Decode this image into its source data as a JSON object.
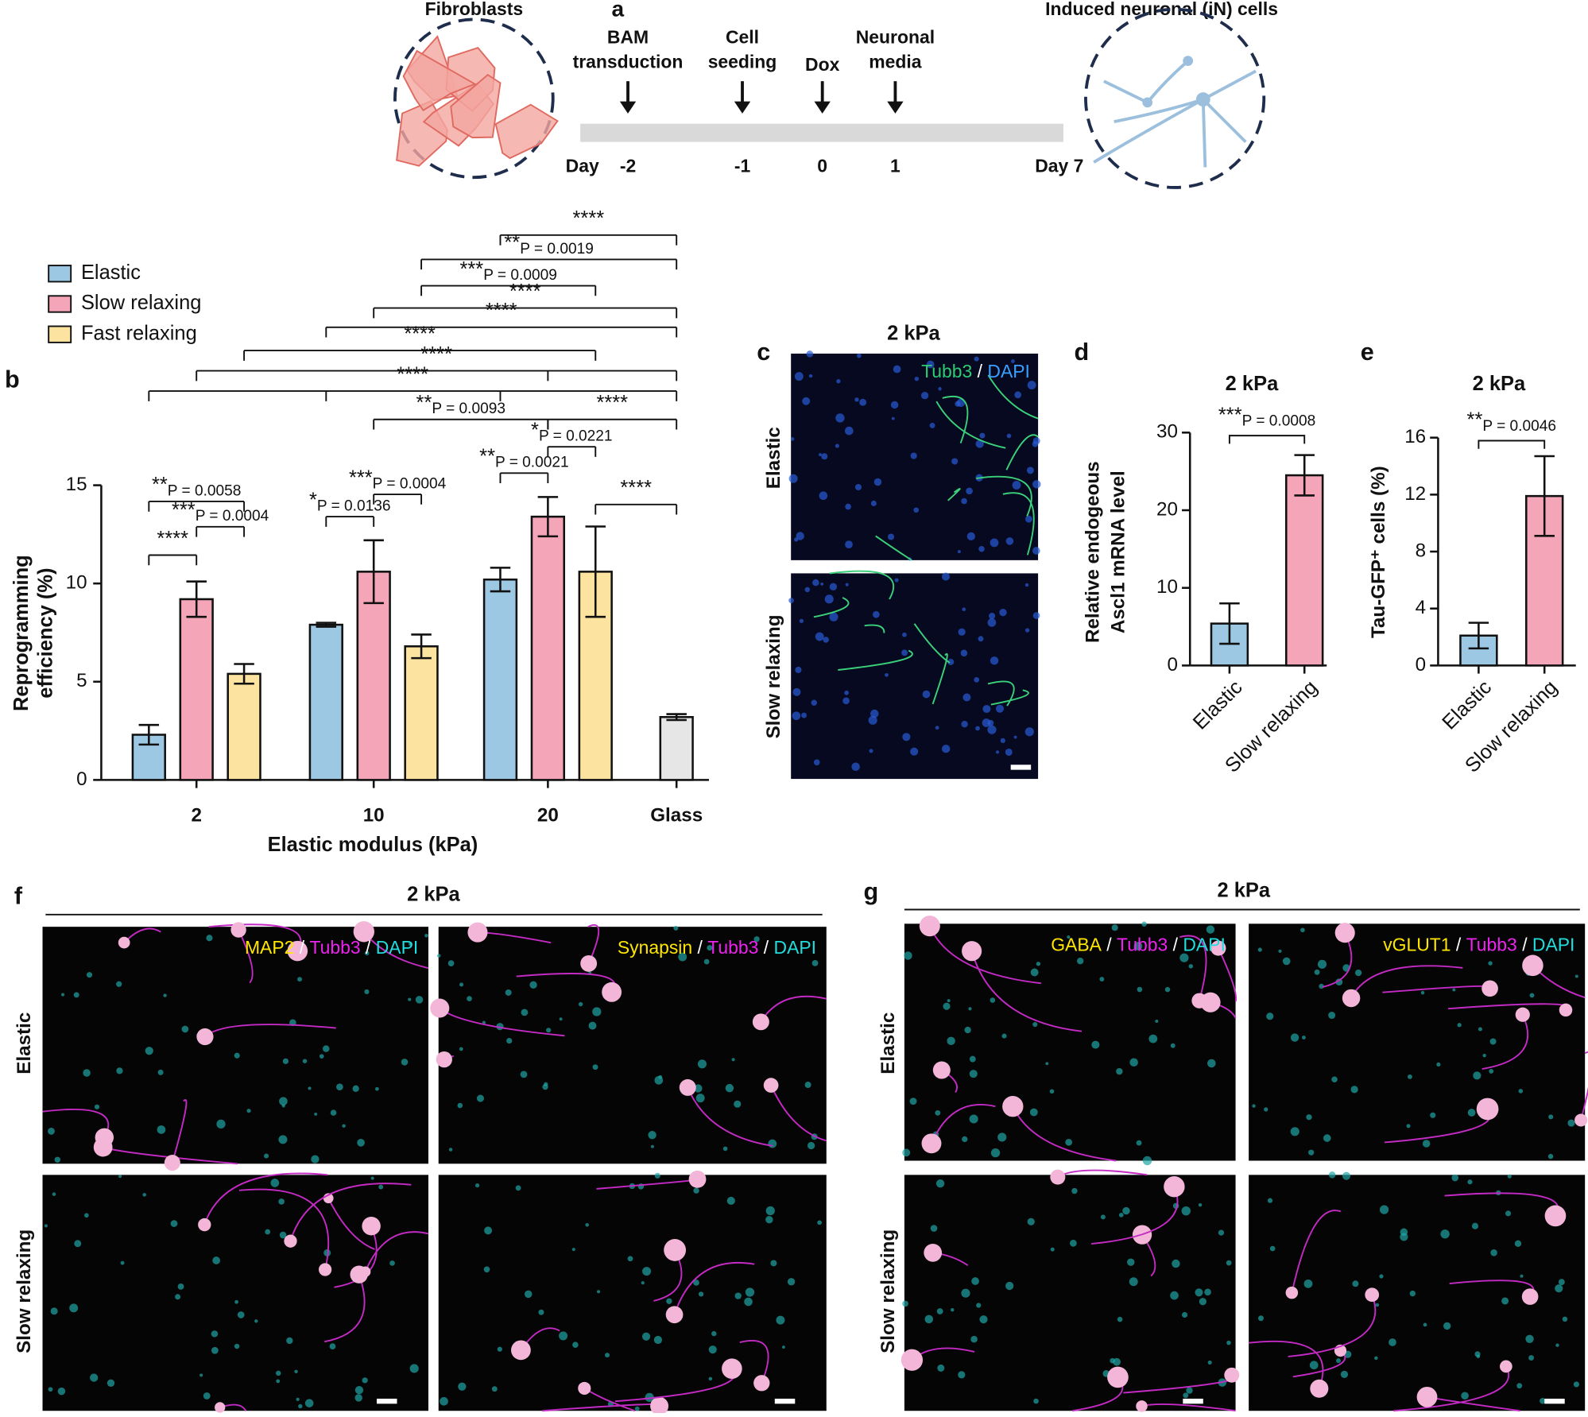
{
  "panel_a": {
    "label": "a",
    "start": "Fibroblasts",
    "end": "Induced neuronal (iN) cells",
    "day_start": "Day",
    "day_end": "Day 7",
    "steps": [
      {
        "label": [
          "BAM",
          "transduction"
        ],
        "day": "-2"
      },
      {
        "label": [
          "Cell",
          "seeding"
        ],
        "day": "-1"
      },
      {
        "label": [
          "Dox"
        ],
        "day": "0"
      },
      {
        "label": [
          "Neuronal",
          "media"
        ],
        "day": "1"
      }
    ]
  },
  "chart_data": [
    {
      "panel": "b",
      "type": "bar",
      "categories": [
        "2",
        "10",
        "20",
        "Glass"
      ],
      "xlabel": "Elastic modulus (kPa)",
      "ylabel": [
        "Reprogramming",
        "efficiency (%)"
      ],
      "ylim": [
        0,
        15
      ],
      "yticks": [
        0,
        5,
        10,
        15
      ],
      "series": [
        {
          "name": "Elastic",
          "color": "#9dc8e4",
          "values": [
            2.3,
            7.9,
            10.2,
            null
          ],
          "errors": [
            0.5,
            0.1,
            0.6,
            null
          ]
        },
        {
          "name": "Slow relaxing",
          "color": "#f4a6b8",
          "values": [
            9.2,
            10.6,
            13.4,
            null
          ],
          "errors": [
            0.9,
            1.6,
            1.0,
            null
          ]
        },
        {
          "name": "Fast relaxing",
          "color": "#fde3a0",
          "values": [
            5.4,
            6.8,
            10.6,
            null
          ],
          "errors": [
            0.5,
            0.6,
            2.3,
            null
          ]
        },
        {
          "color": "#e6e6e6",
          "values": [
            null,
            null,
            null,
            3.2
          ],
          "errors": [
            null,
            null,
            null,
            0.15
          ]
        }
      ],
      "comparisons": [
        {
          "between": [
            [
              2,
              0
            ],
            [
              3,
              3
            ]
          ],
          "stars": "****"
        },
        {
          "between": [
            [
              1,
              2
            ],
            [
              3,
              3
            ]
          ],
          "stars": "**",
          "p": "P = 0.0019"
        },
        {
          "between": [
            [
              1,
              2
            ],
            [
              2,
              2
            ]
          ],
          "stars": "***",
          "p": "P = 0.0009"
        },
        {
          "between": [
            [
              1,
              1
            ],
            [
              3,
              3
            ]
          ],
          "stars": "****"
        },
        {
          "between": [
            [
              1,
              0
            ],
            [
              3,
              3
            ]
          ],
          "stars": "****"
        },
        {
          "between": [
            [
              0,
              2
            ],
            [
              2,
              2
            ]
          ],
          "stars": "****"
        },
        {
          "between": [
            [
              0,
              1
            ],
            [
              2,
              1
            ],
            [
              3,
              3
            ]
          ],
          "stars": "****"
        },
        {
          "between": [
            [
              0,
              0
            ],
            [
              1,
              0
            ],
            [
              2,
              0
            ],
            [
              3,
              3
            ]
          ],
          "stars": "****"
        },
        {
          "between": [
            [
              1,
              1
            ],
            [
              2,
              1
            ]
          ],
          "stars": "**",
          "p": "P = 0.0093"
        },
        {
          "between": [
            [
              2,
              1
            ],
            [
              3,
              3
            ]
          ],
          "stars": "****"
        },
        {
          "between": [
            [
              2,
              1
            ],
            [
              2,
              2
            ]
          ],
          "stars": "*",
          "p": "P = 0.0221"
        },
        {
          "between": [
            [
              2,
              0
            ],
            [
              2,
              1
            ]
          ],
          "stars": "**",
          "p": "P = 0.0021"
        },
        {
          "between": [
            [
              2,
              2
            ],
            [
              3,
              3
            ]
          ],
          "stars": "****"
        },
        {
          "between": [
            [
              0,
              0
            ],
            [
              0,
              2
            ]
          ],
          "stars": "**",
          "p": "P = 0.0058"
        },
        {
          "between": [
            [
              0,
              1
            ],
            [
              0,
              2
            ]
          ],
          "stars": "***",
          "p": "P = 0.0004"
        },
        {
          "between": [
            [
              0,
              0
            ],
            [
              0,
              1
            ]
          ],
          "stars": "****"
        },
        {
          "between": [
            [
              1,
              1
            ],
            [
              1,
              2
            ]
          ],
          "stars": "***",
          "p": "P = 0.0004"
        },
        {
          "between": [
            [
              1,
              0
            ],
            [
              1,
              1
            ]
          ],
          "stars": "*",
          "p": "P = 0.0136"
        }
      ]
    },
    {
      "panel": "d",
      "type": "bar",
      "title": "2 kPa",
      "categories": [
        "Elastic",
        "Slow relaxing"
      ],
      "ylabel": [
        "Relative endogeous",
        "Ascl1 mRNA level"
      ],
      "ylim": [
        0,
        30
      ],
      "yticks": [
        0,
        10,
        20,
        30
      ],
      "colors": [
        "#9dc8e4",
        "#f4a6b8"
      ],
      "values": [
        5.4,
        24.5
      ],
      "errors": [
        2.6,
        2.6
      ],
      "comparisons": [
        {
          "between": [
            0,
            1
          ],
          "stars": "***",
          "p": "P = 0.0008"
        }
      ]
    },
    {
      "panel": "e",
      "type": "bar",
      "title": "2 kPa",
      "categories": [
        "Elastic",
        "Slow relaxing"
      ],
      "ylabel": [
        "Tau-GFP⁺ cells (%)"
      ],
      "ylim": [
        0,
        16
      ],
      "yticks": [
        0,
        4,
        8,
        12,
        16
      ],
      "colors": [
        "#9dc8e4",
        "#f4a6b8"
      ],
      "values": [
        2.1,
        11.9
      ],
      "errors": [
        0.9,
        2.8
      ],
      "comparisons": [
        {
          "between": [
            0,
            1
          ],
          "stars": "**",
          "p": "P = 0.0046"
        }
      ]
    }
  ],
  "panel_c": {
    "label": "c",
    "title": "2 kPa",
    "rows": [
      "Elastic",
      "Slow relaxing"
    ],
    "stains": [
      {
        "markers": [
          {
            "text": "Tubb3",
            "color": "#2ecc71"
          },
          {
            "text": "DAPI",
            "color": "#3aa0ff"
          }
        ],
        "separator": "/"
      }
    ]
  },
  "panel_f": {
    "label": "f",
    "title": "2 kPa",
    "rows": [
      "Elastic",
      "Slow relaxing"
    ],
    "stains": [
      {
        "markers": [
          {
            "text": "MAP2",
            "color": "#ffe600"
          },
          {
            "text": "Tubb3",
            "color": "#ee22ee"
          },
          {
            "text": "DAPI",
            "color": "#22dddd"
          }
        ],
        "separator": "/"
      },
      {
        "markers": [
          {
            "text": "Synapsin",
            "color": "#ffe600"
          },
          {
            "text": "Tubb3",
            "color": "#ee22ee"
          },
          {
            "text": "DAPI",
            "color": "#22dddd"
          }
        ],
        "separator": "/"
      }
    ]
  },
  "panel_g": {
    "label": "g",
    "title": "2 kPa",
    "rows": [
      "Elastic",
      "Slow relaxing"
    ],
    "stains": [
      {
        "markers": [
          {
            "text": "GABA",
            "color": "#ffe600"
          },
          {
            "text": "Tubb3",
            "color": "#ee22ee"
          },
          {
            "text": "DAPI",
            "color": "#22dddd"
          }
        ],
        "separator": "/"
      },
      {
        "markers": [
          {
            "text": "vGLUT1",
            "color": "#ffe600"
          },
          {
            "text": "Tubb3",
            "color": "#ee22ee"
          },
          {
            "text": "DAPI",
            "color": "#22dddd"
          }
        ],
        "separator": "/"
      }
    ]
  }
}
